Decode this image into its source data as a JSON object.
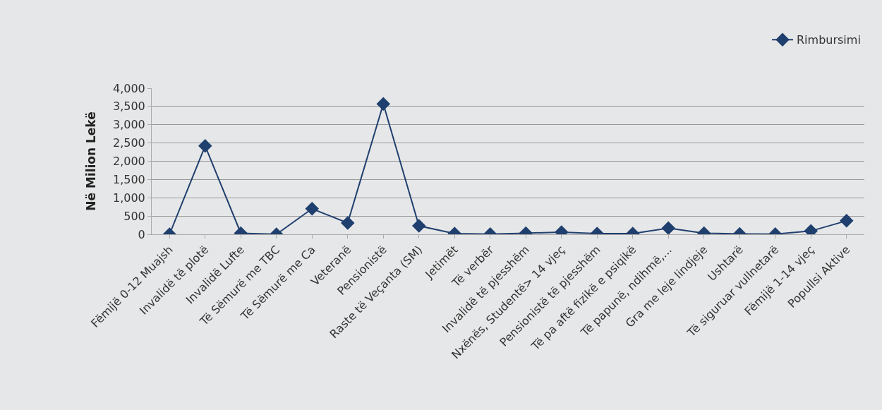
{
  "chart_data": {
    "type": "line",
    "ylabel": "Në Milion Lekë",
    "categories": [
      "Fëmijë 0-12 Muajsh",
      "Invalidë të plotë",
      "Invalidë Lufte",
      "Të Sëmurë me TBC",
      "Të Sëmurë me Ca",
      "Veteranë",
      "Pensionistë",
      "Raste të Veçanta (SM)",
      "Jetimët",
      "Të verbër",
      "Invalidë të pjesshëm",
      "Nxënës, Studentë> 14 vjeç",
      "Pensionistë të pjesshëm",
      "Të pa aftë fizikë e psiqikë",
      "Të papunë, ndihmë,...",
      "Gra me leje lindjeje",
      "Ushtarë",
      "Të siguruar vullnetarë",
      "Fëmijë 1-14 vjeç",
      "Popullsi Aktive"
    ],
    "series": [
      {
        "name": "Rimbursimi",
        "color": "#1f3f6e",
        "values": [
          0,
          2420,
          30,
          0,
          700,
          310,
          3570,
          230,
          20,
          5,
          30,
          60,
          20,
          20,
          170,
          30,
          10,
          5,
          90,
          370
        ]
      }
    ],
    "ylim": [
      0,
      4000
    ],
    "yticks": [
      {
        "value": 0,
        "label": "0"
      },
      {
        "value": 500,
        "label": "500"
      },
      {
        "value": 1000,
        "label": "1,000"
      },
      {
        "value": 1500,
        "label": "1,500"
      },
      {
        "value": 2000,
        "label": "2,000"
      },
      {
        "value": 2500,
        "label": "2,500"
      },
      {
        "value": 3000,
        "label": "3,000"
      },
      {
        "value": 3500,
        "label": "3,500"
      },
      {
        "value": 4000,
        "label": "4,000"
      }
    ],
    "grid": "y",
    "legend": "top right",
    "marker": "diamond",
    "line_style": "solid"
  }
}
